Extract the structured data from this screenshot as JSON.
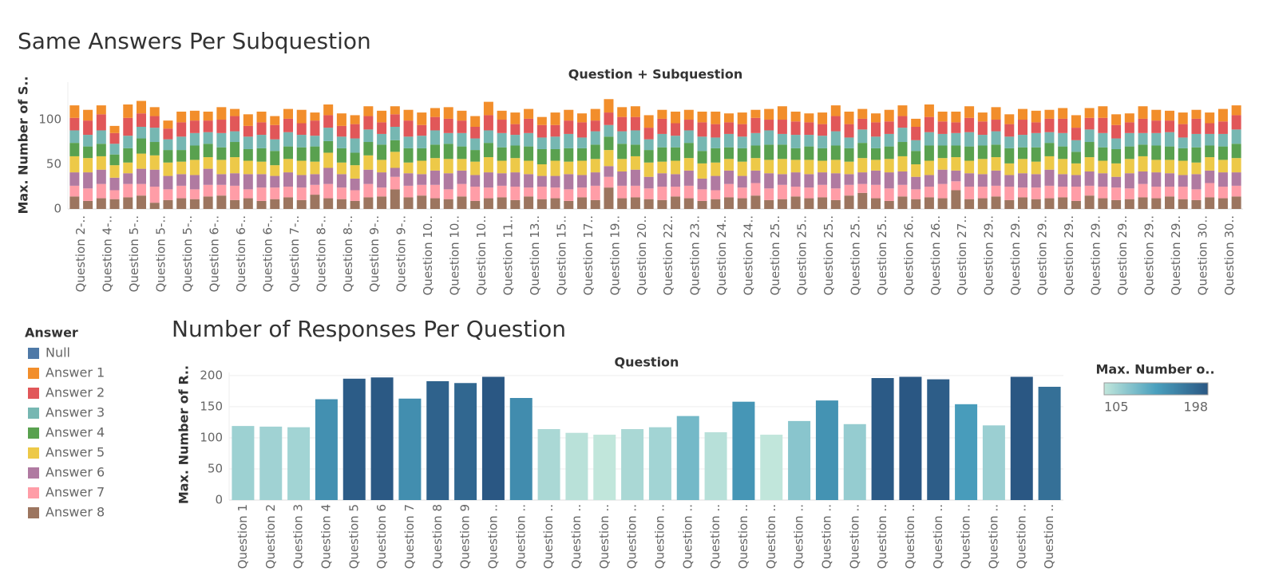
{
  "chart_data": [
    {
      "type": "stacked-bar",
      "title": "Same Answers Per Subquestion",
      "x_label": "Question + Subquestion",
      "y_label": "Max. Number of S..",
      "legend_title": "Answer",
      "categories": [
        "Question 2-..",
        null,
        "Question 4-..",
        null,
        "Question 5-..",
        null,
        "Question 5-..",
        null,
        "Question 5-..",
        null,
        "Question 6-..",
        null,
        "Question 6-..",
        null,
        "Question 6-..",
        null,
        "Question 7-..",
        null,
        "Question 8-..",
        null,
        "Question 8-..",
        null,
        "Question 9-..",
        null,
        "Question 9-..",
        null,
        "Question 10..",
        null,
        "Question 10..",
        null,
        "Question 10..",
        null,
        "Question 11..",
        null,
        "Question 13..",
        null,
        "Question 15..",
        null,
        "Question 17..",
        null,
        "Question 19..",
        null,
        "Question 20..",
        null,
        "Question 22..",
        null,
        "Question 23..",
        null,
        "Question 24..",
        null,
        "Question 24..",
        null,
        "Question 25..",
        null,
        "Question 25..",
        null,
        "Question 25..",
        null,
        "Question 25..",
        null,
        "Question 25..",
        null,
        "Question 26..",
        null,
        "Question 26..",
        null,
        "Question 27..",
        null,
        "Question 29..",
        null,
        "Question 29..",
        null,
        "Question 29..",
        null,
        "Question 29..",
        null,
        "Question 29..",
        null,
        "Question 29..",
        null,
        "Question 29..",
        null,
        "Question 29..",
        null,
        "Question 30..",
        null,
        "Question 30..",
        null
      ],
      "ylim": [
        0,
        142
      ],
      "yticks": [
        0,
        50,
        100
      ],
      "series": [
        {
          "name": "Null",
          "color": "#4e79a7",
          "values": [
            null,
            null,
            null,
            null,
            null,
            null,
            null,
            null,
            null,
            null,
            null,
            null,
            null,
            null,
            null,
            null,
            null,
            null,
            null,
            null,
            null,
            null,
            null,
            null,
            null,
            null,
            null,
            null,
            null,
            null,
            null,
            null,
            null,
            null,
            null,
            null,
            null,
            null,
            null,
            null,
            null,
            null,
            null,
            null,
            null,
            null,
            null,
            null,
            null,
            null,
            null,
            null,
            null,
            null,
            null,
            null,
            null,
            null,
            null,
            null,
            null,
            null,
            null,
            null,
            null,
            null,
            null,
            null,
            null,
            null,
            null,
            null,
            null,
            null,
            null,
            null,
            null,
            null,
            null,
            null,
            null,
            null,
            null,
            null,
            null,
            null,
            null,
            null
          ]
        },
        {
          "name": "Answer 1",
          "color": "#f28e2b",
          "values": [
            14,
            12,
            10,
            8,
            15,
            14,
            10,
            9,
            12,
            11,
            10,
            14,
            8,
            13,
            12,
            10,
            11,
            15,
            9,
            12,
            14,
            10,
            11,
            13,
            9,
            12,
            14,
            10,
            13,
            11,
            12,
            15,
            10,
            13,
            11,
            9,
            14,
            12,
            10,
            13,
            15,
            11,
            12,
            14,
            10,
            13,
            11,
            12,
            14,
            10,
            13,
            9,
            12,
            15,
            11,
            10,
            13,
            12,
            14,
            11,
            10,
            13,
            12,
            9,
            14,
            11,
            12,
            13,
            10,
            14,
            11,
            12,
            13,
            10,
            12,
            14,
            11,
            13,
            12,
            10,
            14,
            12,
            11,
            13,
            10,
            12,
            14,
            11
          ]
        },
        {
          "name": "Answer 2",
          "color": "#e15759",
          "values": [
            14,
            16,
            18,
            12,
            20,
            15,
            13,
            12,
            16,
            14,
            13,
            15,
            17,
            12,
            14,
            16,
            15,
            13,
            17,
            14,
            12,
            16,
            15,
            13,
            14,
            18,
            12,
            15,
            16,
            14,
            13,
            17,
            15,
            12,
            16,
            14,
            13,
            15,
            17,
            12,
            14,
            16,
            15,
            13,
            17,
            14,
            12,
            16,
            15,
            13,
            14,
            17,
            12,
            16,
            15,
            14,
            13,
            17,
            15,
            12,
            16,
            14,
            13,
            15,
            17,
            14,
            12,
            16,
            15,
            13,
            14,
            17,
            12,
            15,
            16,
            14,
            13,
            17,
            15,
            12,
            16,
            14,
            13,
            15,
            17,
            12,
            14,
            16
          ]
        },
        {
          "name": "Answer 3",
          "color": "#76b7b2",
          "values": [
            14,
            13,
            15,
            12,
            14,
            13,
            16,
            12,
            15,
            14,
            13,
            16,
            12,
            14,
            15,
            13,
            16,
            14,
            12,
            15,
            13,
            16,
            14,
            12,
            15,
            13,
            14,
            16,
            12,
            15,
            13,
            14,
            16,
            12,
            15,
            13,
            14,
            16,
            12,
            15,
            13,
            14,
            16,
            12,
            15,
            13,
            14,
            16,
            12,
            15,
            13,
            14,
            16,
            12,
            15,
            13,
            14,
            16,
            12,
            15,
            13,
            14,
            16,
            12,
            15,
            13,
            14,
            16,
            12,
            15,
            13,
            14,
            16,
            12,
            15,
            13,
            14,
            16,
            12,
            15,
            13,
            14,
            16,
            12,
            15,
            13,
            14,
            16
          ]
        },
        {
          "name": "Answer 4",
          "color": "#59a14f",
          "values": [
            15,
            13,
            14,
            12,
            16,
            17,
            15,
            14,
            13,
            16,
            15,
            14,
            17,
            13,
            15,
            16,
            14,
            15,
            17,
            13,
            16,
            14,
            15,
            17,
            13,
            16,
            14,
            15,
            17,
            14,
            13,
            16,
            15,
            14,
            16,
            17,
            13,
            15,
            14,
            16,
            15,
            17,
            13,
            14,
            16,
            15,
            17,
            14,
            16,
            13,
            15,
            14,
            17,
            16,
            13,
            15,
            14,
            16,
            15,
            17,
            13,
            14,
            16,
            15,
            17,
            14,
            13,
            16,
            15,
            14,
            17,
            13,
            16,
            15,
            14,
            13,
            17,
            15,
            16,
            14,
            13,
            16,
            15,
            14,
            17,
            13,
            15,
            16
          ]
        },
        {
          "name": "Answer 5",
          "color": "#edc948",
          "values": [
            18,
            16,
            15,
            14,
            12,
            17,
            16,
            15,
            14,
            17,
            13,
            16,
            18,
            15,
            14,
            12,
            15,
            16,
            14,
            17,
            13,
            15,
            16,
            14,
            18,
            12,
            15,
            14,
            16,
            13,
            15,
            17,
            14,
            16,
            15,
            13,
            17,
            14,
            16,
            15,
            18,
            14,
            15,
            16,
            13,
            15,
            14,
            17,
            15,
            13,
            16,
            14,
            15,
            17,
            14,
            16,
            13,
            15,
            14,
            16,
            12,
            15,
            17,
            14,
            16,
            13,
            15,
            14,
            17,
            15,
            13,
            16,
            14,
            15,
            17,
            13,
            16,
            14,
            15,
            16,
            17,
            14,
            15,
            16,
            13,
            15,
            14,
            16
          ]
        },
        {
          "name": "Answer 6",
          "color": "#b07aa1",
          "values": [
            15,
            18,
            16,
            14,
            12,
            17,
            19,
            15,
            13,
            16,
            18,
            12,
            14,
            17,
            15,
            13,
            16,
            14,
            12,
            18,
            15,
            13,
            16,
            17,
            10,
            14,
            12,
            16,
            18,
            15,
            13,
            17,
            14,
            16,
            15,
            12,
            13,
            17,
            14,
            15,
            12,
            16,
            18,
            13,
            15,
            14,
            17,
            12,
            16,
            15,
            13,
            14,
            17,
            12,
            16,
            15,
            14,
            17,
            12,
            13,
            16,
            18,
            15,
            14,
            13,
            16,
            12,
            15,
            14,
            17,
            13,
            16,
            15,
            18,
            14,
            13,
            16,
            15,
            12,
            17,
            14,
            16,
            15,
            13,
            17,
            14,
            16,
            15
          ]
        },
        {
          "name": "Answer 7",
          "color": "#ff9da7",
          "values": [
            12,
            14,
            16,
            10,
            15,
            13,
            18,
            12,
            14,
            11,
            13,
            12,
            16,
            10,
            15,
            13,
            12,
            14,
            11,
            16,
            13,
            12,
            15,
            10,
            14,
            13,
            12,
            15,
            11,
            14,
            16,
            12,
            13,
            15,
            10,
            14,
            12,
            13,
            11,
            16,
            12,
            14,
            13,
            12,
            15,
            11,
            14,
            13,
            10,
            15,
            12,
            14,
            13,
            16,
            11,
            12,
            14,
            13,
            12,
            10,
            15,
            14,
            13,
            11,
            12,
            16,
            10,
            14,
            13,
            12,
            15,
            11,
            13,
            14,
            12,
            16,
            11,
            13,
            14,
            12,
            15,
            13,
            11,
            14,
            12,
            16,
            13,
            12
          ]
        },
        {
          "name": "Answer 8",
          "color": "#9c755f",
          "values": [
            14,
            9,
            12,
            11,
            13,
            15,
            7,
            10,
            12,
            11,
            14,
            15,
            10,
            12,
            9,
            11,
            13,
            10,
            16,
            12,
            11,
            9,
            13,
            14,
            22,
            13,
            15,
            12,
            11,
            14,
            9,
            12,
            13,
            10,
            14,
            11,
            12,
            9,
            13,
            10,
            24,
            12,
            13,
            11,
            10,
            14,
            12,
            9,
            11,
            13,
            12,
            15,
            10,
            11,
            14,
            12,
            13,
            10,
            15,
            18,
            12,
            9,
            14,
            11,
            13,
            12,
            21,
            11,
            12,
            14,
            10,
            13,
            11,
            12,
            13,
            9,
            15,
            12,
            10,
            11,
            13,
            12,
            14,
            11,
            10,
            13,
            12,
            14
          ]
        }
      ]
    },
    {
      "type": "bar",
      "title": "Number of Responses Per Question",
      "x_label": "Question",
      "y_label": "Max. Number of R..",
      "categories": [
        "Question 1",
        "Question 2",
        "Question 3",
        "Question 4",
        "Question 5",
        "Question 6",
        "Question 7",
        "Question 8",
        "Question 9",
        "Question ..",
        "Question ..",
        "Question ..",
        "Question ..",
        "Question ..",
        "Question ..",
        "Question ..",
        "Question ..",
        "Question ..",
        "Question ..",
        "Question ..",
        "Question ..",
        "Question ..",
        "Question ..",
        "Question ..",
        "Question ..",
        "Question ..",
        "Question ..",
        "Question ..",
        "Question ..",
        "Question .."
      ],
      "values": [
        119,
        118,
        117,
        162,
        195,
        197,
        163,
        191,
        188,
        198,
        164,
        114,
        108,
        105,
        114,
        117,
        135,
        109,
        158,
        105,
        127,
        160,
        122,
        196,
        198,
        194,
        154,
        120,
        198,
        182
      ],
      "ylim": [
        0,
        205
      ],
      "yticks": [
        0,
        50,
        100,
        150,
        200
      ],
      "grid": true,
      "color_legend_title": "Max. Number o..",
      "colorlim": [
        105,
        198
      ],
      "color_scale": [
        "#c1e6db",
        "#4aa0be",
        "#2a5783"
      ]
    }
  ]
}
